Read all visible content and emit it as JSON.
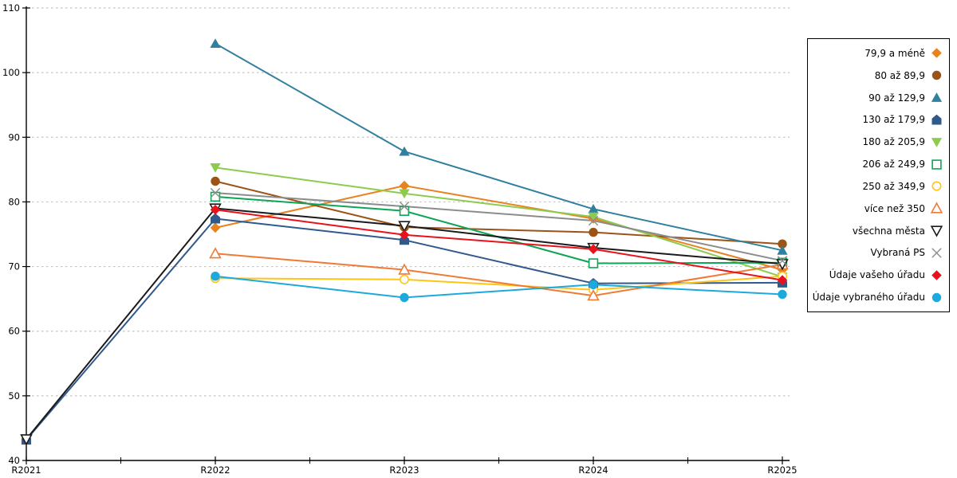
{
  "chart_data": {
    "type": "line",
    "title": "",
    "xlabel": "",
    "ylabel": "",
    "categories": [
      "R2021",
      "R2022",
      "R2023",
      "R2024",
      "R2025"
    ],
    "ylim": [
      40,
      110
    ],
    "ytick_step": 10,
    "grid": "horizontal-dashed",
    "legend_position": "right",
    "series": [
      {
        "name": "79,9 a méně",
        "color": "#E8821E",
        "marker": "diamond",
        "values": [
          null,
          76.0,
          82.5,
          77.4,
          69.5
        ]
      },
      {
        "name": "80 až 89,9",
        "color": "#9C5315",
        "marker": "circle",
        "values": [
          null,
          83.2,
          76.1,
          75.3,
          73.5
        ]
      },
      {
        "name": "90 až 129,9",
        "color": "#31809E",
        "marker": "triangle-up",
        "values": [
          null,
          104.5,
          87.8,
          78.9,
          72.5
        ]
      },
      {
        "name": "130 až 179,9",
        "color": "#31598C",
        "marker": "pentagon",
        "values": [
          43.2,
          77.4,
          74.1,
          67.4,
          67.5
        ]
      },
      {
        "name": "180 až 205,9",
        "color": "#8CCB4E",
        "marker": "triangle-down",
        "values": [
          null,
          85.3,
          81.3,
          77.7,
          68.4
        ]
      },
      {
        "name": "206 až 249,9",
        "color": "#0DA556",
        "marker": "square-open",
        "values": [
          null,
          80.8,
          78.6,
          70.5,
          70.6
        ]
      },
      {
        "name": "250 až 349,9",
        "color": "#FFC414",
        "marker": "circle-open",
        "values": [
          null,
          68.2,
          68.0,
          66.4,
          68.5
        ]
      },
      {
        "name": "více než 350",
        "color": "#F07A33",
        "marker": "triangle-up-open",
        "values": [
          null,
          72.0,
          69.5,
          65.5,
          70.3
        ]
      },
      {
        "name": "všechna města",
        "color": "#1A1A1A",
        "marker": "triangle-down-open",
        "values": [
          43.3,
          79.0,
          76.3,
          72.9,
          70.4
        ]
      },
      {
        "name": "Vybraná PS",
        "color": "#8C8C8C",
        "marker": "x",
        "values": [
          null,
          81.4,
          79.3,
          77.1,
          70.9
        ]
      },
      {
        "name": "Údaje vašeho úřadu",
        "color": "#E8111C",
        "marker": "diamond",
        "values": [
          null,
          78.8,
          74.9,
          72.7,
          67.9
        ]
      },
      {
        "name": "Údaje vybraného úřadu",
        "color": "#1EA9DC",
        "marker": "circle",
        "values": [
          null,
          68.5,
          65.2,
          67.2,
          65.7
        ]
      }
    ]
  },
  "style": {
    "axis_color": "#000000",
    "gridline_color": "#C4C4C4",
    "tick_label_color": "#000000",
    "background": "#FFFFFF"
  }
}
